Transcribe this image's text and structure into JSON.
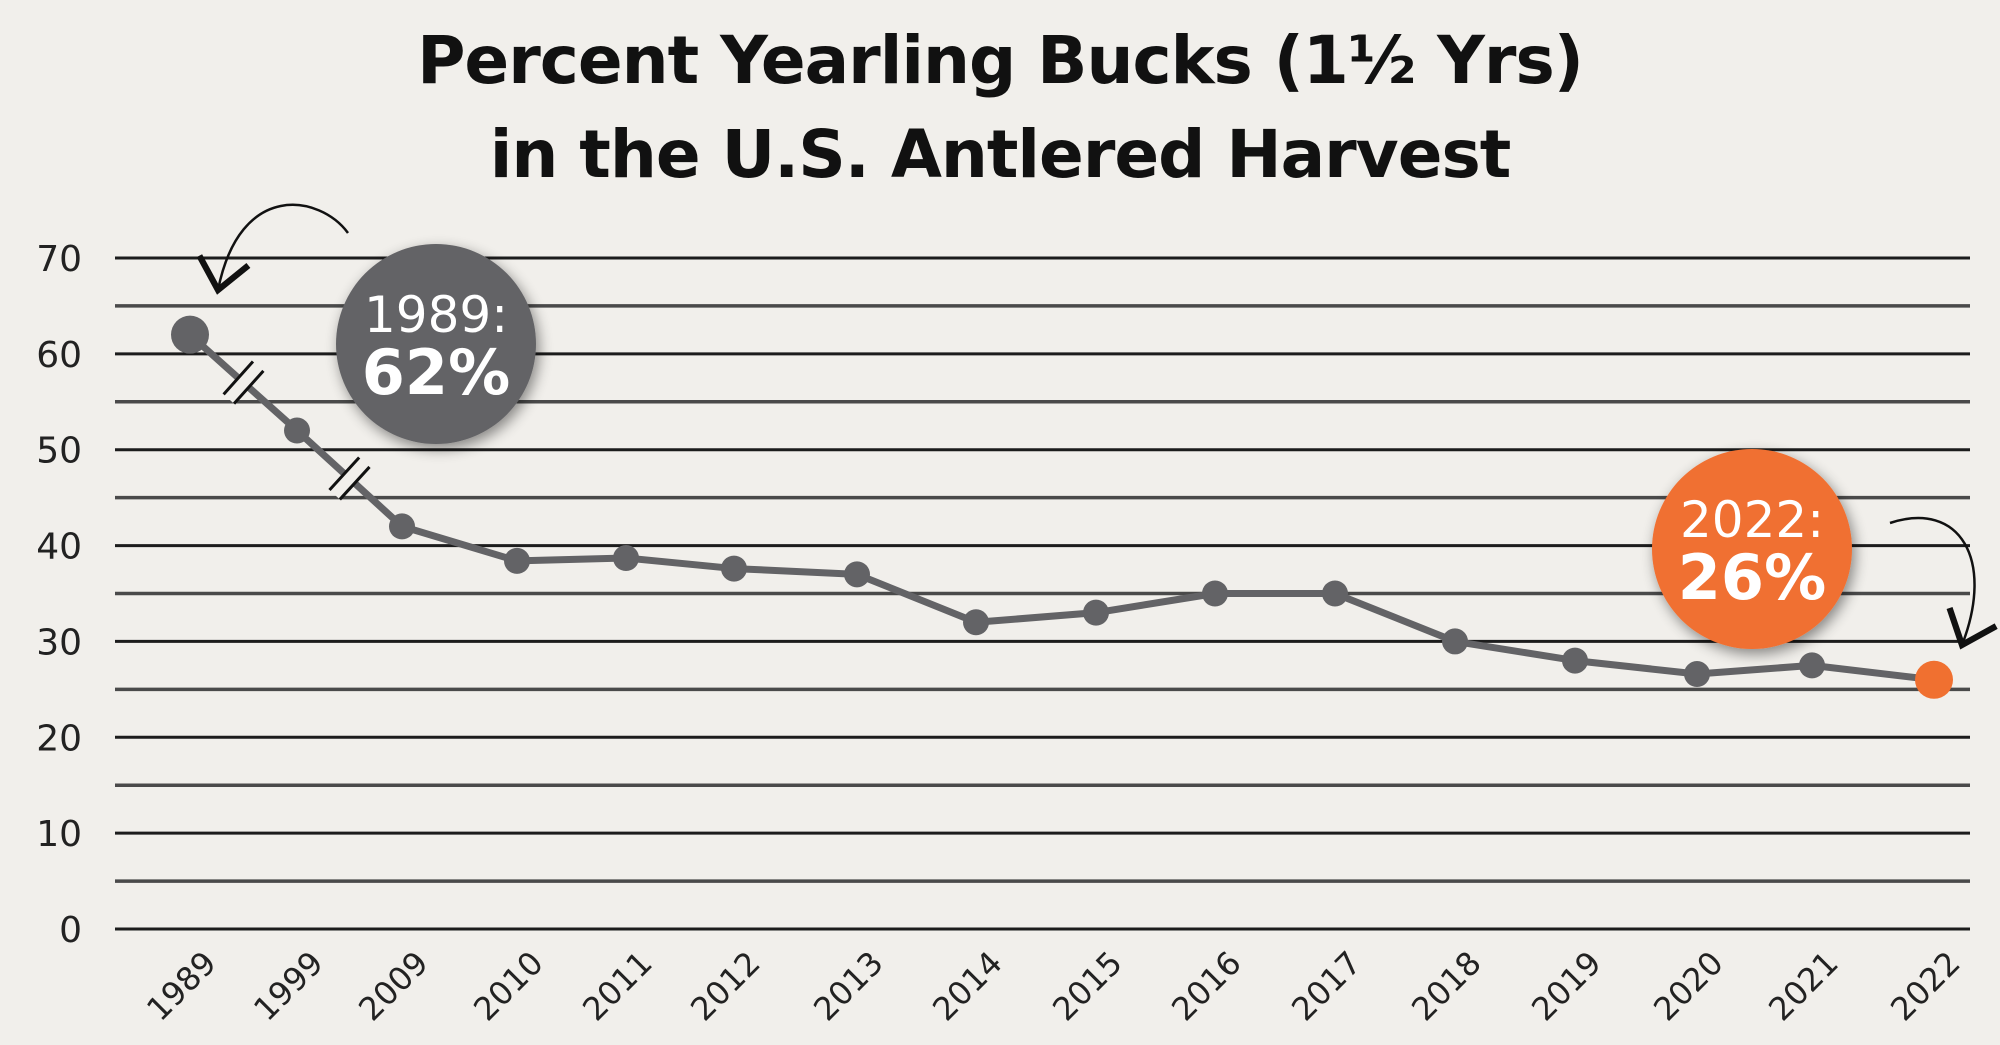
{
  "chart_data": {
    "type": "line",
    "title": "Percent Yearling Bucks (1½ Yrs) in the U.S. Antlered Harvest",
    "title_lines": [
      "Percent Yearling Bucks (1½ Yrs)",
      "in the U.S. Antlered Harvest"
    ],
    "xlabel": "",
    "ylabel": "",
    "ylim": [
      0,
      70
    ],
    "yticks": [
      0,
      10,
      20,
      30,
      40,
      50,
      60,
      70
    ],
    "grid": "horizontal lines every 5 units",
    "categories": [
      "1989",
      "1999",
      "2009",
      "2010",
      "2011",
      "2012",
      "2013",
      "2014",
      "2015",
      "2016",
      "2017",
      "2018",
      "2019",
      "2020",
      "2021",
      "2022"
    ],
    "series": [
      {
        "name": "Percent yearling bucks",
        "values": [
          62,
          52,
          42,
          38.4,
          38.7,
          37.6,
          37,
          32,
          33,
          35,
          35,
          30,
          28,
          26.6,
          27.5,
          26
        ],
        "color": "#636366"
      }
    ],
    "axis_breaks": [
      "between 1989 and 1999",
      "between 1999 and 2009"
    ],
    "annotations": [
      {
        "label_year": "1989:",
        "label_value": "62%",
        "color": "#636366",
        "points_to": "1989"
      },
      {
        "label_year": "2022:",
        "label_value": "26%",
        "color": "#f07030",
        "points_to": "2022"
      }
    ],
    "highlight_color": "#f07030",
    "line_color": "#636366"
  }
}
